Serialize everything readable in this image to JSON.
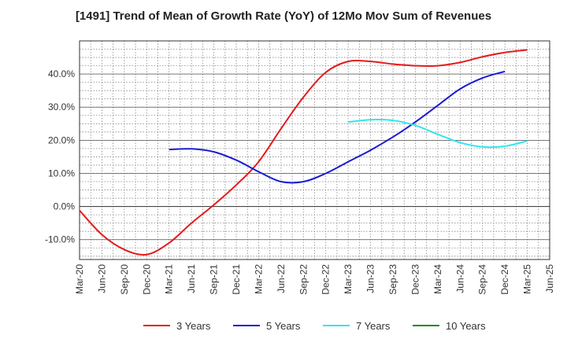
{
  "chart_data": {
    "type": "line",
    "title": "[1491]  Trend of Mean of Growth Rate (YoY) of 12Mo Mov Sum of Revenues",
    "xlabel": "",
    "ylabel": "",
    "ylim": [
      -16,
      50
    ],
    "y_ticks": [
      -10,
      0,
      10,
      20,
      30,
      40
    ],
    "y_tick_labels": [
      "-10.0%",
      "0.0%",
      "10.0%",
      "20.0%",
      "30.0%",
      "40.0%"
    ],
    "x_tick_labels": [
      "Mar-20",
      "Jun-20",
      "Sep-20",
      "Dec-20",
      "Mar-21",
      "Jun-21",
      "Sep-21",
      "Dec-21",
      "Mar-22",
      "Jun-22",
      "Sep-22",
      "Dec-22",
      "Mar-23",
      "Jun-23",
      "Sep-23",
      "Dec-23",
      "Mar-24",
      "Jun-24",
      "Sep-24",
      "Dec-24",
      "Mar-25",
      "Jun-25"
    ],
    "grid": true,
    "legend_position": "bottom",
    "series": [
      {
        "name": "3 Years",
        "color": "#e41a1c",
        "values": [
          -1.2,
          -8.5,
          -13.0,
          -14.5,
          -11.0,
          -5.0,
          0.5,
          6.5,
          13.5,
          23.5,
          33.0,
          40.5,
          43.8,
          43.8,
          43.0,
          42.5,
          42.5,
          43.5,
          45.2,
          46.5,
          47.3
        ]
      },
      {
        "name": "5 Years",
        "color": "#1a1ad4",
        "values": [
          null,
          null,
          null,
          null,
          17.2,
          17.4,
          16.5,
          14.0,
          10.5,
          7.5,
          7.5,
          10.0,
          13.5,
          17.0,
          21.0,
          25.5,
          30.5,
          35.5,
          38.8,
          40.8,
          null
        ]
      },
      {
        "name": "7 Years",
        "color": "#33e5ee",
        "values": [
          null,
          null,
          null,
          null,
          null,
          null,
          null,
          null,
          null,
          null,
          null,
          null,
          25.5,
          26.2,
          26.0,
          24.5,
          21.8,
          19.3,
          18.0,
          18.2,
          19.8
        ]
      },
      {
        "name": "10 Years",
        "color": "#1a8c1a",
        "values": []
      }
    ]
  }
}
